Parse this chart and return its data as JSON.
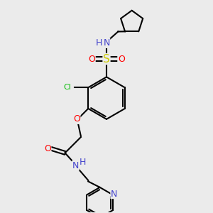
{
  "bg_color": "#ebebeb",
  "bond_color": "#000000",
  "atom_colors": {
    "N": "#4444cc",
    "O": "#ff0000",
    "S": "#cccc00",
    "Cl": "#00bb00",
    "H": "#4444cc"
  },
  "lw": 1.5,
  "fs": 8
}
